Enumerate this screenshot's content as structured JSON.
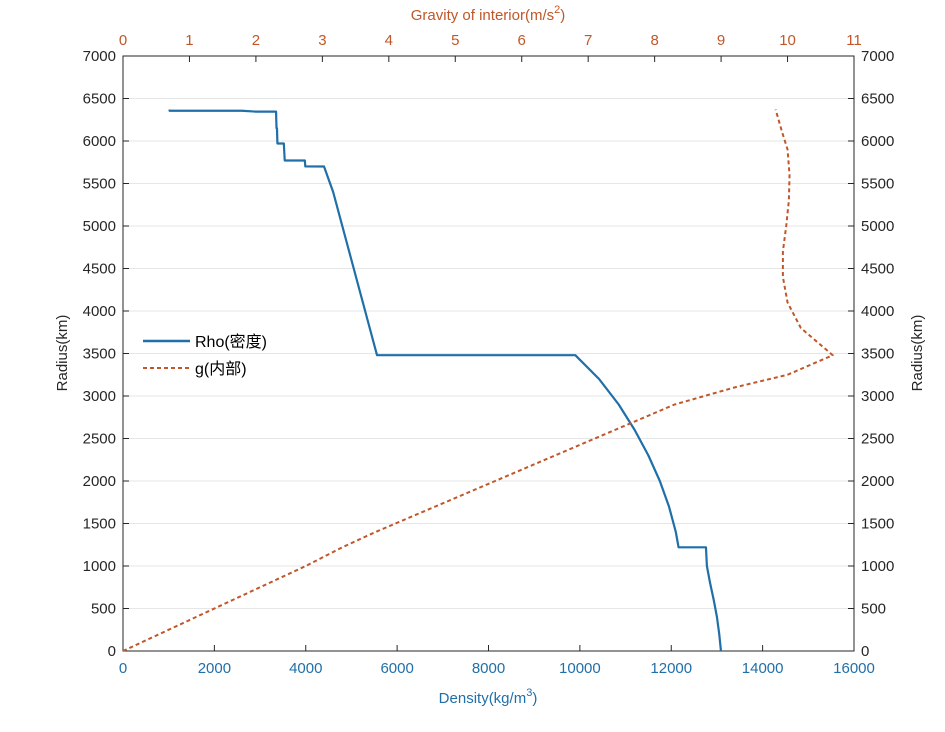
{
  "chart_data": {
    "type": "line",
    "xlabel_bottom": "Density(kg/m",
    "xlabel_bottom_sup": "3",
    "xlabel_bottom_end": ")",
    "xlabel_top": "Gravity of interior(m/s",
    "xlabel_top_sup": "2",
    "xlabel_top_end": ")",
    "ylabel_left": "Radius(km)",
    "ylabel_right": "Radius(km)",
    "xlim_bottom": [
      0,
      16000
    ],
    "xlim_top": [
      0,
      11
    ],
    "ylim": [
      0,
      7000
    ],
    "xticks_bottom": [
      "0",
      "2000",
      "4000",
      "6000",
      "8000",
      "10000",
      "12000",
      "14000",
      "16000"
    ],
    "xticks_top": [
      "0",
      "1",
      "2",
      "3",
      "4",
      "5",
      "6",
      "7",
      "8",
      "9",
      "10",
      "11"
    ],
    "yticks": [
      "0",
      "500",
      "1000",
      "1500",
      "2000",
      "2500",
      "3000",
      "3500",
      "4000",
      "4500",
      "5000",
      "5500",
      "6000",
      "6500",
      "7000"
    ],
    "grid": "horizontal",
    "legend_position": "left-middle",
    "series": [
      {
        "name": "Rho(密度)",
        "axis": "bottom",
        "color": "#1f6fa8",
        "style": "solid",
        "points": [
          [
            13088,
            0
          ],
          [
            13050,
            200
          ],
          [
            13000,
            400
          ],
          [
            12930,
            600
          ],
          [
            12850,
            800
          ],
          [
            12780,
            1000
          ],
          [
            12760,
            1220
          ],
          [
            12160,
            1220
          ],
          [
            12100,
            1400
          ],
          [
            11950,
            1700
          ],
          [
            11750,
            2000
          ],
          [
            11500,
            2300
          ],
          [
            11200,
            2600
          ],
          [
            10850,
            2900
          ],
          [
            10420,
            3200
          ],
          [
            9900,
            3480
          ],
          [
            5560,
            3480
          ],
          [
            5400,
            3800
          ],
          [
            5200,
            4200
          ],
          [
            5000,
            4600
          ],
          [
            4800,
            5000
          ],
          [
            4600,
            5400
          ],
          [
            4400,
            5700
          ],
          [
            3990,
            5701
          ],
          [
            3980,
            5771
          ],
          [
            3540,
            5771
          ],
          [
            3520,
            5971
          ],
          [
            3380,
            5971
          ],
          [
            3370,
            6151
          ],
          [
            3360,
            6151
          ],
          [
            3350,
            6346
          ],
          [
            2900,
            6346
          ],
          [
            2600,
            6356
          ],
          [
            1020,
            6356
          ],
          [
            1020,
            6371
          ]
        ]
      },
      {
        "name": "g(内部)",
        "axis": "top",
        "color": "#c0572a",
        "style": "dashed",
        "points": [
          [
            0,
            0
          ],
          [
            0.55,
            200
          ],
          [
            1.1,
            400
          ],
          [
            1.65,
            600
          ],
          [
            2.2,
            800
          ],
          [
            2.75,
            1000
          ],
          [
            3.3,
            1220
          ],
          [
            3.8,
            1400
          ],
          [
            4.7,
            1700
          ],
          [
            5.6,
            2000
          ],
          [
            6.5,
            2300
          ],
          [
            7.4,
            2600
          ],
          [
            8.3,
            2900
          ],
          [
            9.2,
            3100
          ],
          [
            10.0,
            3250
          ],
          [
            10.68,
            3480
          ],
          [
            10.5,
            3600
          ],
          [
            10.2,
            3800
          ],
          [
            10.0,
            4100
          ],
          [
            9.93,
            4400
          ],
          [
            9.93,
            4700
          ],
          [
            9.98,
            5000
          ],
          [
            10.02,
            5300
          ],
          [
            10.03,
            5600
          ],
          [
            10.0,
            5900
          ],
          [
            9.92,
            6100
          ],
          [
            9.82,
            6371
          ]
        ]
      }
    ]
  }
}
